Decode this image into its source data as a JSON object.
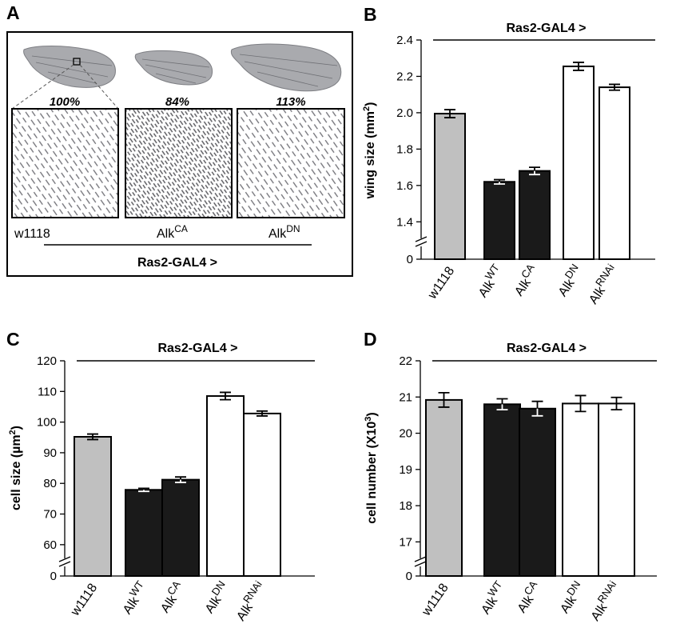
{
  "panel_a": {
    "letter": "A",
    "percents": [
      "100%",
      "84%",
      "113%"
    ],
    "genotypes": [
      {
        "base": "w1118",
        "sup": ""
      },
      {
        "base": "Alk",
        "sup": "CA"
      },
      {
        "base": "Alk",
        "sup": "DN"
      }
    ],
    "driver": "Ras2-GAL4 >",
    "image_names": [
      "wing-w1118",
      "wing-alk-ca",
      "wing-alk-dn"
    ],
    "colors": {
      "wing": "#a9aaae",
      "trichome": "#7a7a80",
      "background": "#ffffff"
    }
  },
  "category_labels": [
    {
      "base": "w1118",
      "sup": ""
    },
    {
      "base": "Alk",
      "sup": "WT"
    },
    {
      "base": "Alk",
      "sup": "CA"
    },
    {
      "base": "Alk",
      "sup": "DN"
    },
    {
      "base": "Alk",
      "sup": "RNAi"
    }
  ],
  "bar_colors": [
    "#c0c0c0",
    "#1a1a1a",
    "#1a1a1a",
    "#ffffff",
    "#ffffff"
  ],
  "chart_data": [
    {
      "type": "bar",
      "panel": "B",
      "title": "Ras2-GAL4 >",
      "ylabel_base": "wing size (mm",
      "ylabel_sup": "2",
      "ylabel_end": ")",
      "categories": [
        "w1118",
        "AlkWT",
        "AlkCA",
        "AlkDN",
        "AlkRNAi"
      ],
      "values": [
        1.995,
        1.62,
        1.68,
        2.255,
        2.14
      ],
      "errors": [
        0.022,
        0.012,
        0.02,
        0.022,
        0.016
      ],
      "ylim": [
        1.3,
        2.4
      ],
      "yticks": [
        "1.4",
        "1.6",
        "1.8",
        "2.0",
        "2.2",
        "2.4"
      ],
      "axis_break": true,
      "zero_label": "0",
      "grid": false
    },
    {
      "type": "bar",
      "panel": "C",
      "title": "Ras2-GAL4 >",
      "ylabel_base": "cell size (µm",
      "ylabel_sup": "2",
      "ylabel_end": ")",
      "categories": [
        "w1118",
        "AlkWT",
        "AlkCA",
        "AlkDN",
        "AlkRNAi"
      ],
      "values": [
        95.2,
        77.9,
        81.2,
        108.5,
        102.8
      ],
      "errors": [
        0.9,
        0.5,
        0.9,
        1.2,
        0.8
      ],
      "ylim": [
        55,
        120
      ],
      "yticks": [
        "60",
        "70",
        "80",
        "90",
        "100",
        "110",
        "120"
      ],
      "axis_break": true,
      "zero_label": "0",
      "grid": false
    },
    {
      "type": "bar",
      "panel": "D",
      "title": "Ras2-GAL4 >",
      "ylabel_base": "cell number (X10",
      "ylabel_sup": "3",
      "ylabel_end": ")",
      "categories": [
        "w1118",
        "AlkWT",
        "AlkCA",
        "AlkDN",
        "AlkRNAi"
      ],
      "values": [
        20.92,
        20.8,
        20.68,
        20.82,
        20.82
      ],
      "errors": [
        0.2,
        0.15,
        0.2,
        0.22,
        0.17
      ],
      "ylim": [
        16.5,
        22
      ],
      "yticks": [
        "17",
        "18",
        "19",
        "20",
        "21",
        "22"
      ],
      "axis_break": true,
      "zero_label": "0",
      "grid": false
    }
  ]
}
